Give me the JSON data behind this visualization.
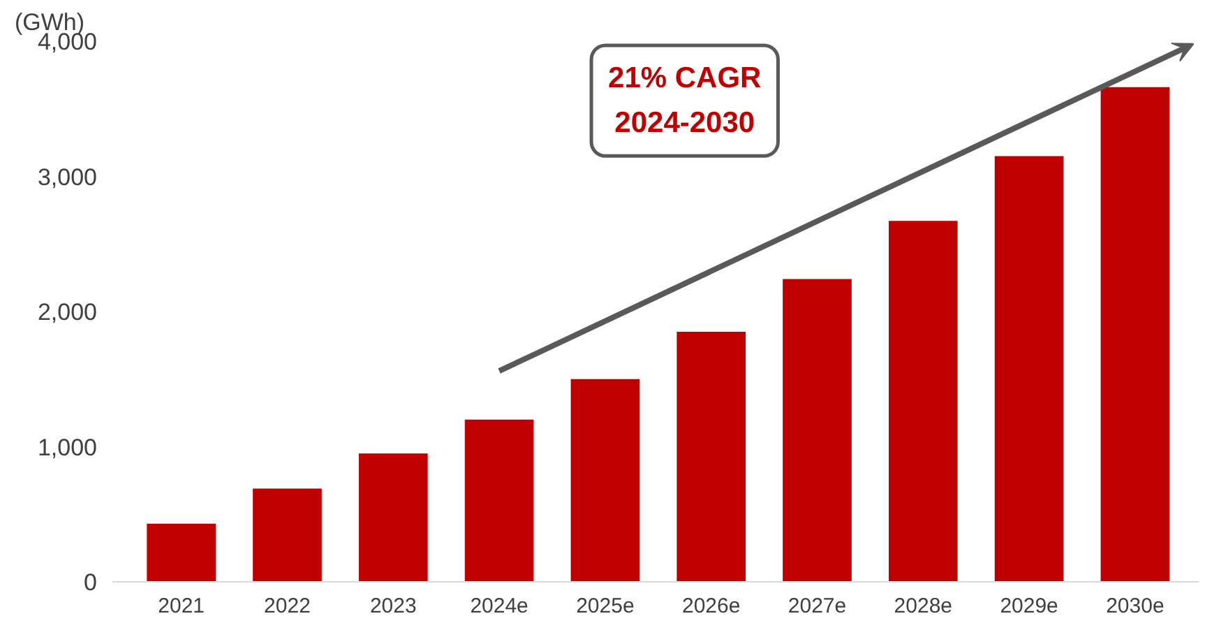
{
  "chart_data": {
    "type": "bar",
    "ylabel": "(GWh)",
    "categories": [
      "2021",
      "2022",
      "2023",
      "2024e",
      "2025e",
      "2026e",
      "2027e",
      "2028e",
      "2029e",
      "2030e"
    ],
    "values": [
      430,
      690,
      950,
      1200,
      1500,
      1850,
      2240,
      2670,
      3150,
      3660
    ],
    "color": "#c00000",
    "ylim": [
      0,
      4000
    ],
    "yticks": [
      {
        "value": 0,
        "label": "0"
      },
      {
        "value": 1000,
        "label": "1,000"
      },
      {
        "value": 2000,
        "label": "2,000"
      },
      {
        "value": 3000,
        "label": "3,000"
      },
      {
        "value": 4000,
        "label": "4,000"
      }
    ],
    "grid": false,
    "annotations": [
      "21% CAGR\n2024-2030"
    ]
  }
}
